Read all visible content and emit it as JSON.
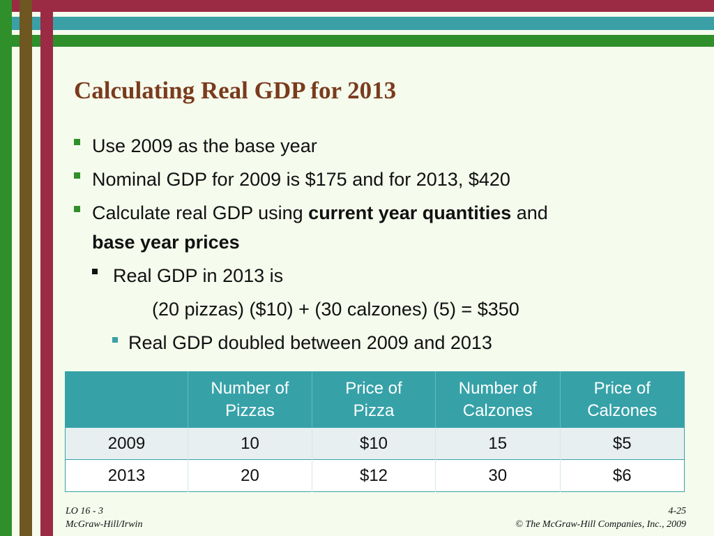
{
  "colors": {
    "background": "#f5fbed",
    "stripe_red": "#9b2a45",
    "stripe_teal": "#3aa0a6",
    "stripe_green": "#2f8f2a",
    "stripe_brown": "#6e5720",
    "title": "#7a3b1d",
    "table_header": "#36a2a8"
  },
  "slide": {
    "title": "Calculating Real GDP for 2013",
    "bullets": [
      {
        "text": "Use 2009 as the base year"
      },
      {
        "text": "Nominal GDP for 2009 is $175 and for 2013, $420"
      },
      {
        "prefix": "Calculate real GDP using ",
        "bold1": "current year quantities",
        "middle": " and",
        "bold2": "base year prices"
      }
    ],
    "sub_bullet": "Real GDP in 2013 is",
    "formula": "(20 pizzas) ($10) + (30 calzones) (5) = $350",
    "conclusion": "Real GDP doubled between 2009 and 2013"
  },
  "table": {
    "headers": [
      [
        "",
        ""
      ],
      [
        "Number of",
        "Pizzas"
      ],
      [
        "Price of",
        "Pizza"
      ],
      [
        "Number of",
        "Calzones"
      ],
      [
        "Price of",
        "Calzones"
      ]
    ],
    "rows": [
      [
        "2009",
        "10",
        "$10",
        "15",
        "$5"
      ],
      [
        "2013",
        "20",
        "$12",
        "30",
        "$6"
      ]
    ]
  },
  "footer": {
    "lo": "LO 16 - 3",
    "publisher": "McGraw-Hill/Irwin",
    "page": "4-25",
    "copyright": "© The McGraw-Hill Companies, Inc., 2009"
  }
}
